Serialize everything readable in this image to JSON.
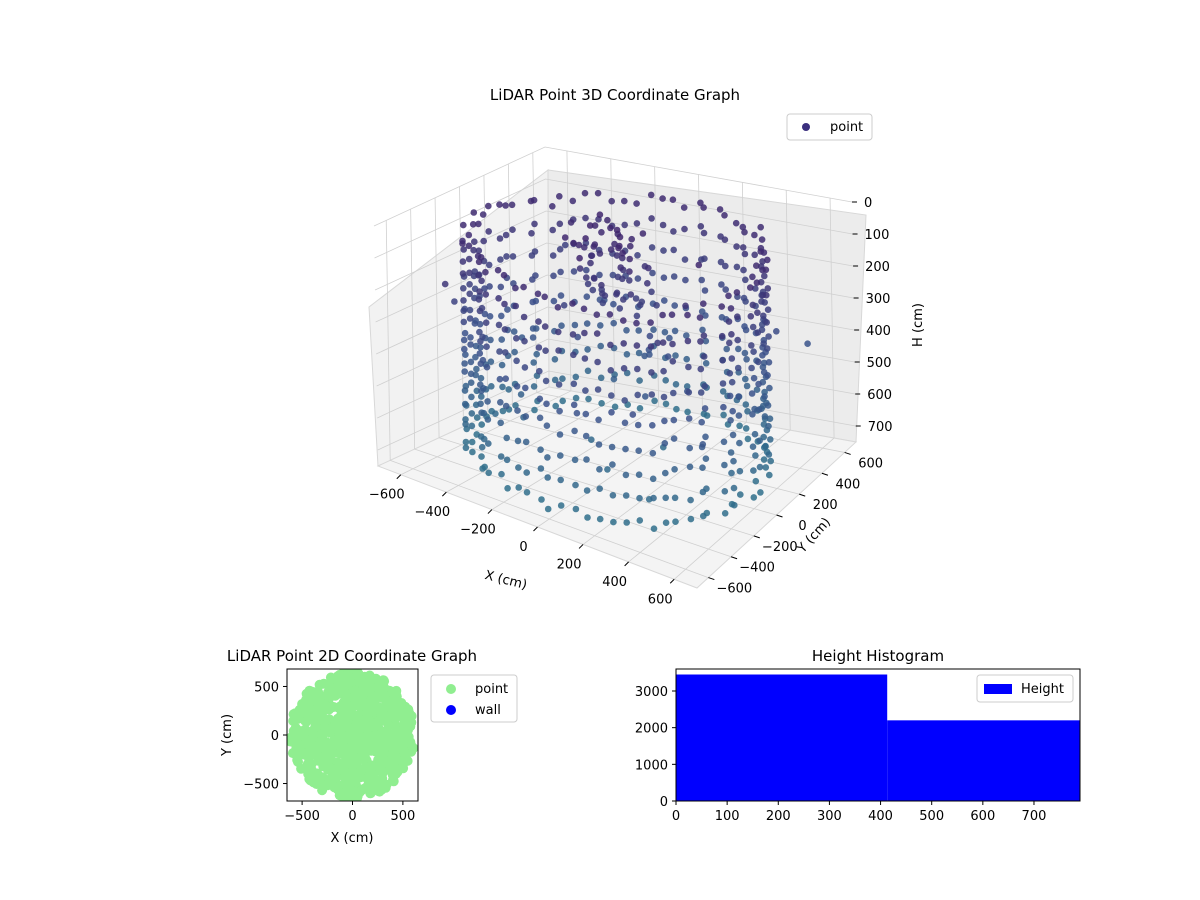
{
  "chart_data": [
    {
      "type": "scatter",
      "projection": "3d",
      "title": "LiDAR Point 3D Coordinate Graph",
      "xlabel": "X (cm)",
      "ylabel": "Y (cm)",
      "zlabel": "H (cm)",
      "xlim": [
        -700,
        700
      ],
      "ylim": [
        -700,
        700
      ],
      "zlim": [
        750,
        0
      ],
      "z_axis_inverted": true,
      "x_ticks": [
        -600,
        -400,
        -200,
        0,
        200,
        400,
        600
      ],
      "y_ticks": [
        -600,
        -400,
        -200,
        0,
        200,
        400,
        600
      ],
      "z_ticks": [
        0,
        100,
        200,
        300,
        400,
        500,
        600,
        700
      ],
      "grid": true,
      "colormap": "viridis",
      "legend": {
        "placement": "top-right",
        "entries": [
          "point"
        ]
      },
      "series": [
        {
          "name": "point",
          "color": "#3b2f7e",
          "shape": "circular wall of points around the sensor, radius about 500-600 cm, heights 0-750 cm, plus a small structure near the center and sparse outliers",
          "sample_points": [
            [
              -600,
              -200,
              300
            ],
            [
              -600,
              0,
              400
            ],
            [
              -550,
              250,
              350
            ],
            [
              -450,
              400,
              300
            ],
            [
              -250,
              550,
              350
            ],
            [
              0,
              600,
              350
            ],
            [
              250,
              550,
              350
            ],
            [
              450,
              400,
              300
            ],
            [
              550,
              250,
              350
            ],
            [
              600,
              0,
              400
            ],
            [
              600,
              -200,
              300
            ],
            [
              500,
              -350,
              500
            ],
            [
              300,
              -500,
              550
            ],
            [
              0,
              -600,
              600
            ],
            [
              -300,
              -500,
              550
            ],
            [
              -500,
              -350,
              500
            ],
            [
              0,
              0,
              150
            ],
            [
              50,
              50,
              200
            ],
            [
              0,
              100,
              100
            ],
            [
              -100,
              0,
              250
            ]
          ]
        }
      ]
    },
    {
      "type": "scatter",
      "title": "LiDAR Point 2D Coordinate Graph",
      "xlabel": "X (cm)",
      "ylabel": "Y (cm)",
      "xlim": [
        -650,
        650
      ],
      "ylim": [
        -680,
        680
      ],
      "x_ticks": [
        -500,
        0,
        500
      ],
      "y_ticks": [
        -500,
        0,
        500
      ],
      "grid": false,
      "legend": {
        "placement": "outside-right",
        "entries": [
          "point",
          "wall"
        ]
      },
      "series": [
        {
          "name": "point",
          "color": "#90ee90",
          "extent_note": "dense blob covering roughly x -650..650, y -650..600"
        },
        {
          "name": "wall",
          "color": "#0000ff",
          "points": []
        }
      ]
    },
    {
      "type": "bar",
      "subtype": "histogram",
      "title": "Height Histogram",
      "xlabel": "",
      "ylabel": "",
      "xlim": [
        0,
        790
      ],
      "ylim": [
        0,
        3600
      ],
      "x_ticks": [
        0,
        100,
        200,
        300,
        400,
        500,
        600,
        700
      ],
      "y_ticks": [
        0,
        1000,
        2000,
        3000
      ],
      "legend": {
        "placement": "top-right",
        "entries": [
          "Height"
        ]
      },
      "series": [
        {
          "name": "Height",
          "color": "#0000ff",
          "bins": [
            {
              "start": 0,
              "end": 413,
              "count": 3450
            },
            {
              "start": 413,
              "end": 790,
              "count": 2200
            }
          ]
        }
      ]
    }
  ]
}
